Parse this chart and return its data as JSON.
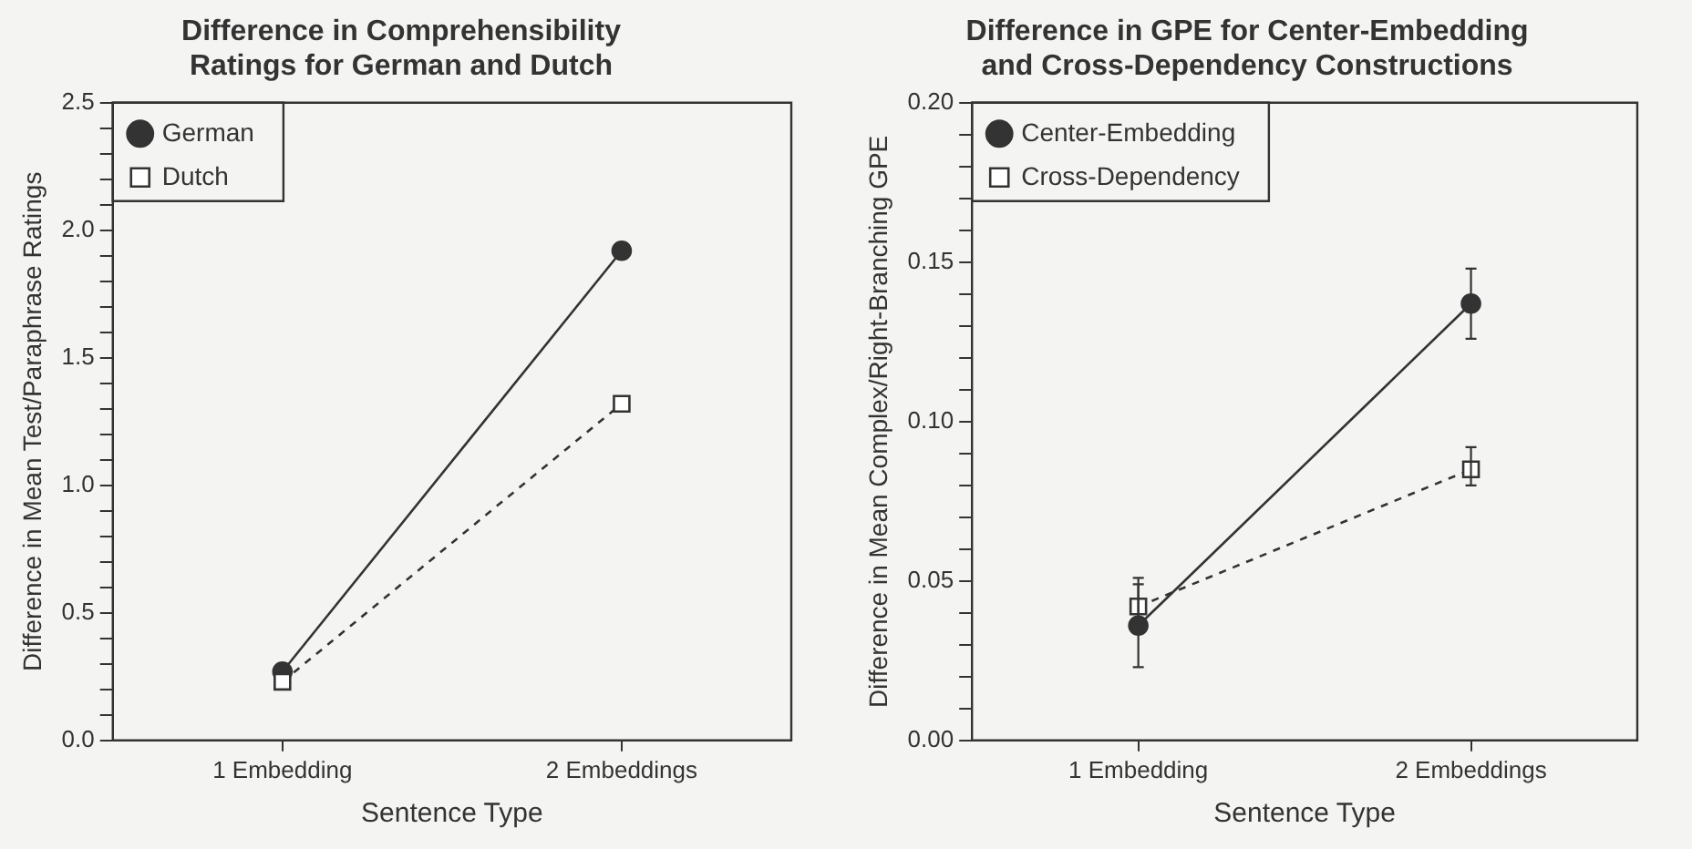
{
  "chart_data": [
    {
      "type": "line",
      "title": "Difference in Comprehensibility\nRatings for German and Dutch",
      "xlabel": "Sentence Type",
      "ylabel": "Difference in Mean Test/Paraphrase Ratings",
      "categories": [
        "1 Embedding",
        "2 Embeddings"
      ],
      "series": [
        {
          "name": "German",
          "color": "#333333",
          "values": [
            0.27,
            1.92
          ],
          "marker": "circle",
          "line_style": "solid"
        },
        {
          "name": "Dutch",
          "color": "#333333",
          "values": [
            0.23,
            1.32
          ],
          "marker": "square",
          "line_style": "dashed"
        }
      ],
      "ylim": [
        0,
        2.5
      ],
      "yticks": [
        {
          "value": 0,
          "label": "0.0"
        },
        {
          "value": 0.1,
          "label": null
        },
        {
          "value": 0.2,
          "label": null
        },
        {
          "value": 0.3,
          "label": null
        },
        {
          "value": 0.4,
          "label": null
        },
        {
          "value": 0.5,
          "label": "0.5"
        },
        {
          "value": 0.6,
          "label": null
        },
        {
          "value": 0.7,
          "label": null
        },
        {
          "value": 0.8,
          "label": null
        },
        {
          "value": 0.9,
          "label": null
        },
        {
          "value": 1,
          "label": "1.0"
        },
        {
          "value": 1.1,
          "label": null
        },
        {
          "value": 1.2,
          "label": null
        },
        {
          "value": 1.3,
          "label": null
        },
        {
          "value": 1.4,
          "label": null
        },
        {
          "value": 1.5,
          "label": "1.5"
        },
        {
          "value": 1.6,
          "label": null
        },
        {
          "value": 1.7,
          "label": null
        },
        {
          "value": 1.8,
          "label": null
        },
        {
          "value": 1.9,
          "label": null
        },
        {
          "value": 2,
          "label": "2.0"
        },
        {
          "value": 2.1,
          "label": null
        },
        {
          "value": 2.2,
          "label": null
        },
        {
          "value": 2.3,
          "label": null
        },
        {
          "value": 2.4,
          "label": null
        },
        {
          "value": 2.5,
          "label": "2.5"
        }
      ],
      "grid": false,
      "legend": "top left"
    },
    {
      "type": "line",
      "title": "Difference in GPE for Center-Embedding\nand Cross-Dependency Constructions",
      "xlabel": "Sentence Type",
      "ylabel": "Difference in Mean Complex/Right-Branching GPE",
      "categories": [
        "1 Embedding",
        "2 Embeddings"
      ],
      "series": [
        {
          "name": "Center-Embedding",
          "color": "#333333",
          "values": [
            0.036,
            0.137
          ],
          "errors": [
            [
              0.023,
              0.049
            ],
            [
              0.126,
              0.148
            ]
          ],
          "marker": "circle",
          "line_style": "solid"
        },
        {
          "name": "Cross-Dependency",
          "color": "#333333",
          "values": [
            0.042,
            0.085
          ],
          "errors": [
            [
              0.037,
              0.051
            ],
            [
              0.08,
              0.092
            ]
          ],
          "marker": "square",
          "line_style": "dashed"
        }
      ],
      "ylim": [
        0,
        0.2
      ],
      "yticks": [
        {
          "value": 0,
          "label": "0.00"
        },
        {
          "value": 0.01,
          "label": null
        },
        {
          "value": 0.02,
          "label": null
        },
        {
          "value": 0.03,
          "label": null
        },
        {
          "value": 0.04,
          "label": null
        },
        {
          "value": 0.05,
          "label": "0.05"
        },
        {
          "value": 0.06,
          "label": null
        },
        {
          "value": 0.07,
          "label": null
        },
        {
          "value": 0.08,
          "label": null
        },
        {
          "value": 0.09,
          "label": null
        },
        {
          "value": 0.1,
          "label": "0.10"
        },
        {
          "value": 0.11,
          "label": null
        },
        {
          "value": 0.12,
          "label": null
        },
        {
          "value": 0.13,
          "label": null
        },
        {
          "value": 0.14,
          "label": null
        },
        {
          "value": 0.15,
          "label": "0.15"
        },
        {
          "value": 0.16,
          "label": null
        },
        {
          "value": 0.17,
          "label": null
        },
        {
          "value": 0.18,
          "label": null
        },
        {
          "value": 0.19,
          "label": null
        },
        {
          "value": 0.2,
          "label": "0.20"
        }
      ],
      "grid": false,
      "legend": "top left"
    }
  ]
}
